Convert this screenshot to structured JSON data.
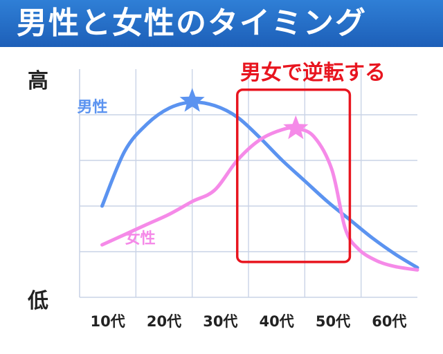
{
  "title": "男性と女性のタイミング",
  "chart_data": {
    "type": "line",
    "categories": [
      "10代",
      "20代",
      "30代",
      "40代",
      "50代",
      "60代"
    ],
    "y_axis": {
      "high_label": "高",
      "low_label": "低"
    },
    "series": [
      {
        "name": "男性",
        "color": "#5b93f0",
        "points": [
          [
            5,
            3.0
          ],
          [
            10,
            5.4
          ],
          [
            15,
            6.6
          ],
          [
            20,
            7.3
          ],
          [
            25,
            7.55
          ],
          [
            30,
            7.4
          ],
          [
            35,
            6.9
          ],
          [
            40,
            6.0
          ],
          [
            45,
            5.0
          ],
          [
            50,
            4.1
          ],
          [
            55,
            3.2
          ],
          [
            60,
            2.4
          ],
          [
            65,
            1.6
          ],
          [
            70,
            0.9
          ],
          [
            75,
            0.3
          ]
        ],
        "peak": [
          25,
          7.6
        ]
      },
      {
        "name": "女性",
        "color": "#f58ae8",
        "points": [
          [
            5,
            1.3
          ],
          [
            10,
            1.75
          ],
          [
            15,
            2.2
          ],
          [
            20,
            2.65
          ],
          [
            25,
            3.2
          ],
          [
            30,
            3.7
          ],
          [
            35,
            5.0
          ],
          [
            40,
            5.9
          ],
          [
            45,
            6.35
          ],
          [
            48,
            6.4
          ],
          [
            52,
            6.05
          ],
          [
            56,
            4.6
          ],
          [
            59,
            2.0
          ],
          [
            62,
            1.1
          ],
          [
            66,
            0.6
          ],
          [
            70,
            0.35
          ],
          [
            75,
            0.2
          ]
        ],
        "peak": [
          48,
          6.4
        ]
      }
    ],
    "annotation": {
      "text": "男女で逆転する",
      "color": "#e8151f",
      "x_range": [
        35,
        60
      ]
    },
    "xlim": [
      0,
      75
    ],
    "ylim": [
      -1,
      9
    ],
    "grid": true
  }
}
